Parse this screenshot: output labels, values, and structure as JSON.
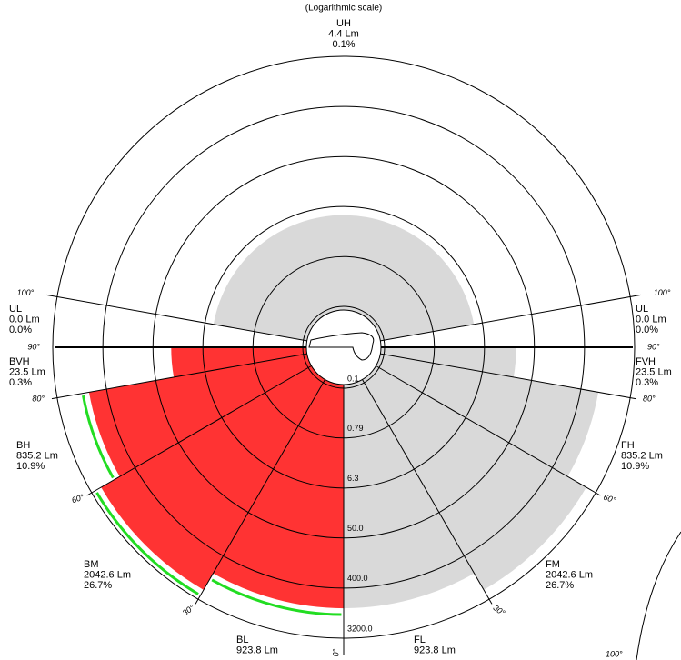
{
  "chart_data": {
    "type": "bug-polar",
    "subtitle": "(Logarithmic scale)",
    "log_scale": true,
    "rlim": [
      0.1,
      3200
    ],
    "rticks": [
      0.1,
      0.79,
      6.3,
      {
        "value": 50,
        "label": "50.0"
      },
      {
        "value": 400,
        "label": "400.0"
      },
      {
        "value": 3200,
        "label": "3200.0"
      }
    ],
    "alim": [
      0,
      180
    ],
    "angle_ticks": [
      {
        "value": 0,
        "label": "0°"
      },
      {
        "value": 30,
        "label": "30°"
      },
      {
        "value": 60,
        "label": "60°"
      },
      {
        "value": 80,
        "label": "80°"
      },
      {
        "value": 90,
        "label": "90°"
      },
      {
        "value": 100,
        "label": "100°"
      }
    ],
    "back_color": "#ff3333",
    "front_color": "#d9d9d9",
    "limit_color": "#22dd22",
    "top_zone": {
      "name": "UH",
      "lumens": 4.4,
      "lumens_label": "4.4 Lm",
      "percent": 0.1,
      "percent_label": "0.1%"
    },
    "back_zones": [
      {
        "name": "BL",
        "lumens": 923.8,
        "lumens_label": "923.8 Lm"
      },
      {
        "name": "BM",
        "lumens": 2042.6,
        "lumens_label": "2042.6 Lm",
        "percent": 26.7,
        "percent_label": "26.7%"
      },
      {
        "name": "BH",
        "lumens": 835.2,
        "lumens_label": "835.2 Lm",
        "percent": 10.9,
        "percent_label": "10.9%"
      },
      {
        "name": "BVH",
        "lumens": 23.5,
        "lumens_label": "23.5 Lm",
        "percent": 0.3,
        "percent_label": "0.3%"
      },
      {
        "name": "UL",
        "lumens": 0.0,
        "lumens_label": "0.0 Lm",
        "percent": 0.0,
        "percent_label": "0.0%"
      }
    ],
    "front_zones": [
      {
        "name": "FL",
        "lumens": 923.8,
        "lumens_label": "923.8 Lm"
      },
      {
        "name": "FM",
        "lumens": 2042.6,
        "lumens_label": "2042.6 Lm",
        "percent": 26.7,
        "percent_label": "26.7%"
      },
      {
        "name": "FH",
        "lumens": 835.2,
        "lumens_label": "835.2 Lm",
        "percent": 10.9,
        "percent_label": "10.9%"
      },
      {
        "name": "FVH",
        "lumens": 23.5,
        "lumens_label": "23.5 Lm",
        "percent": 0.3,
        "percent_label": "0.3%"
      },
      {
        "name": "UL",
        "lumens": 0.0,
        "lumens_label": "0.0 Lm",
        "percent": 0.0,
        "percent_label": "0.0%"
      }
    ],
    "fragment_label": "100°"
  }
}
